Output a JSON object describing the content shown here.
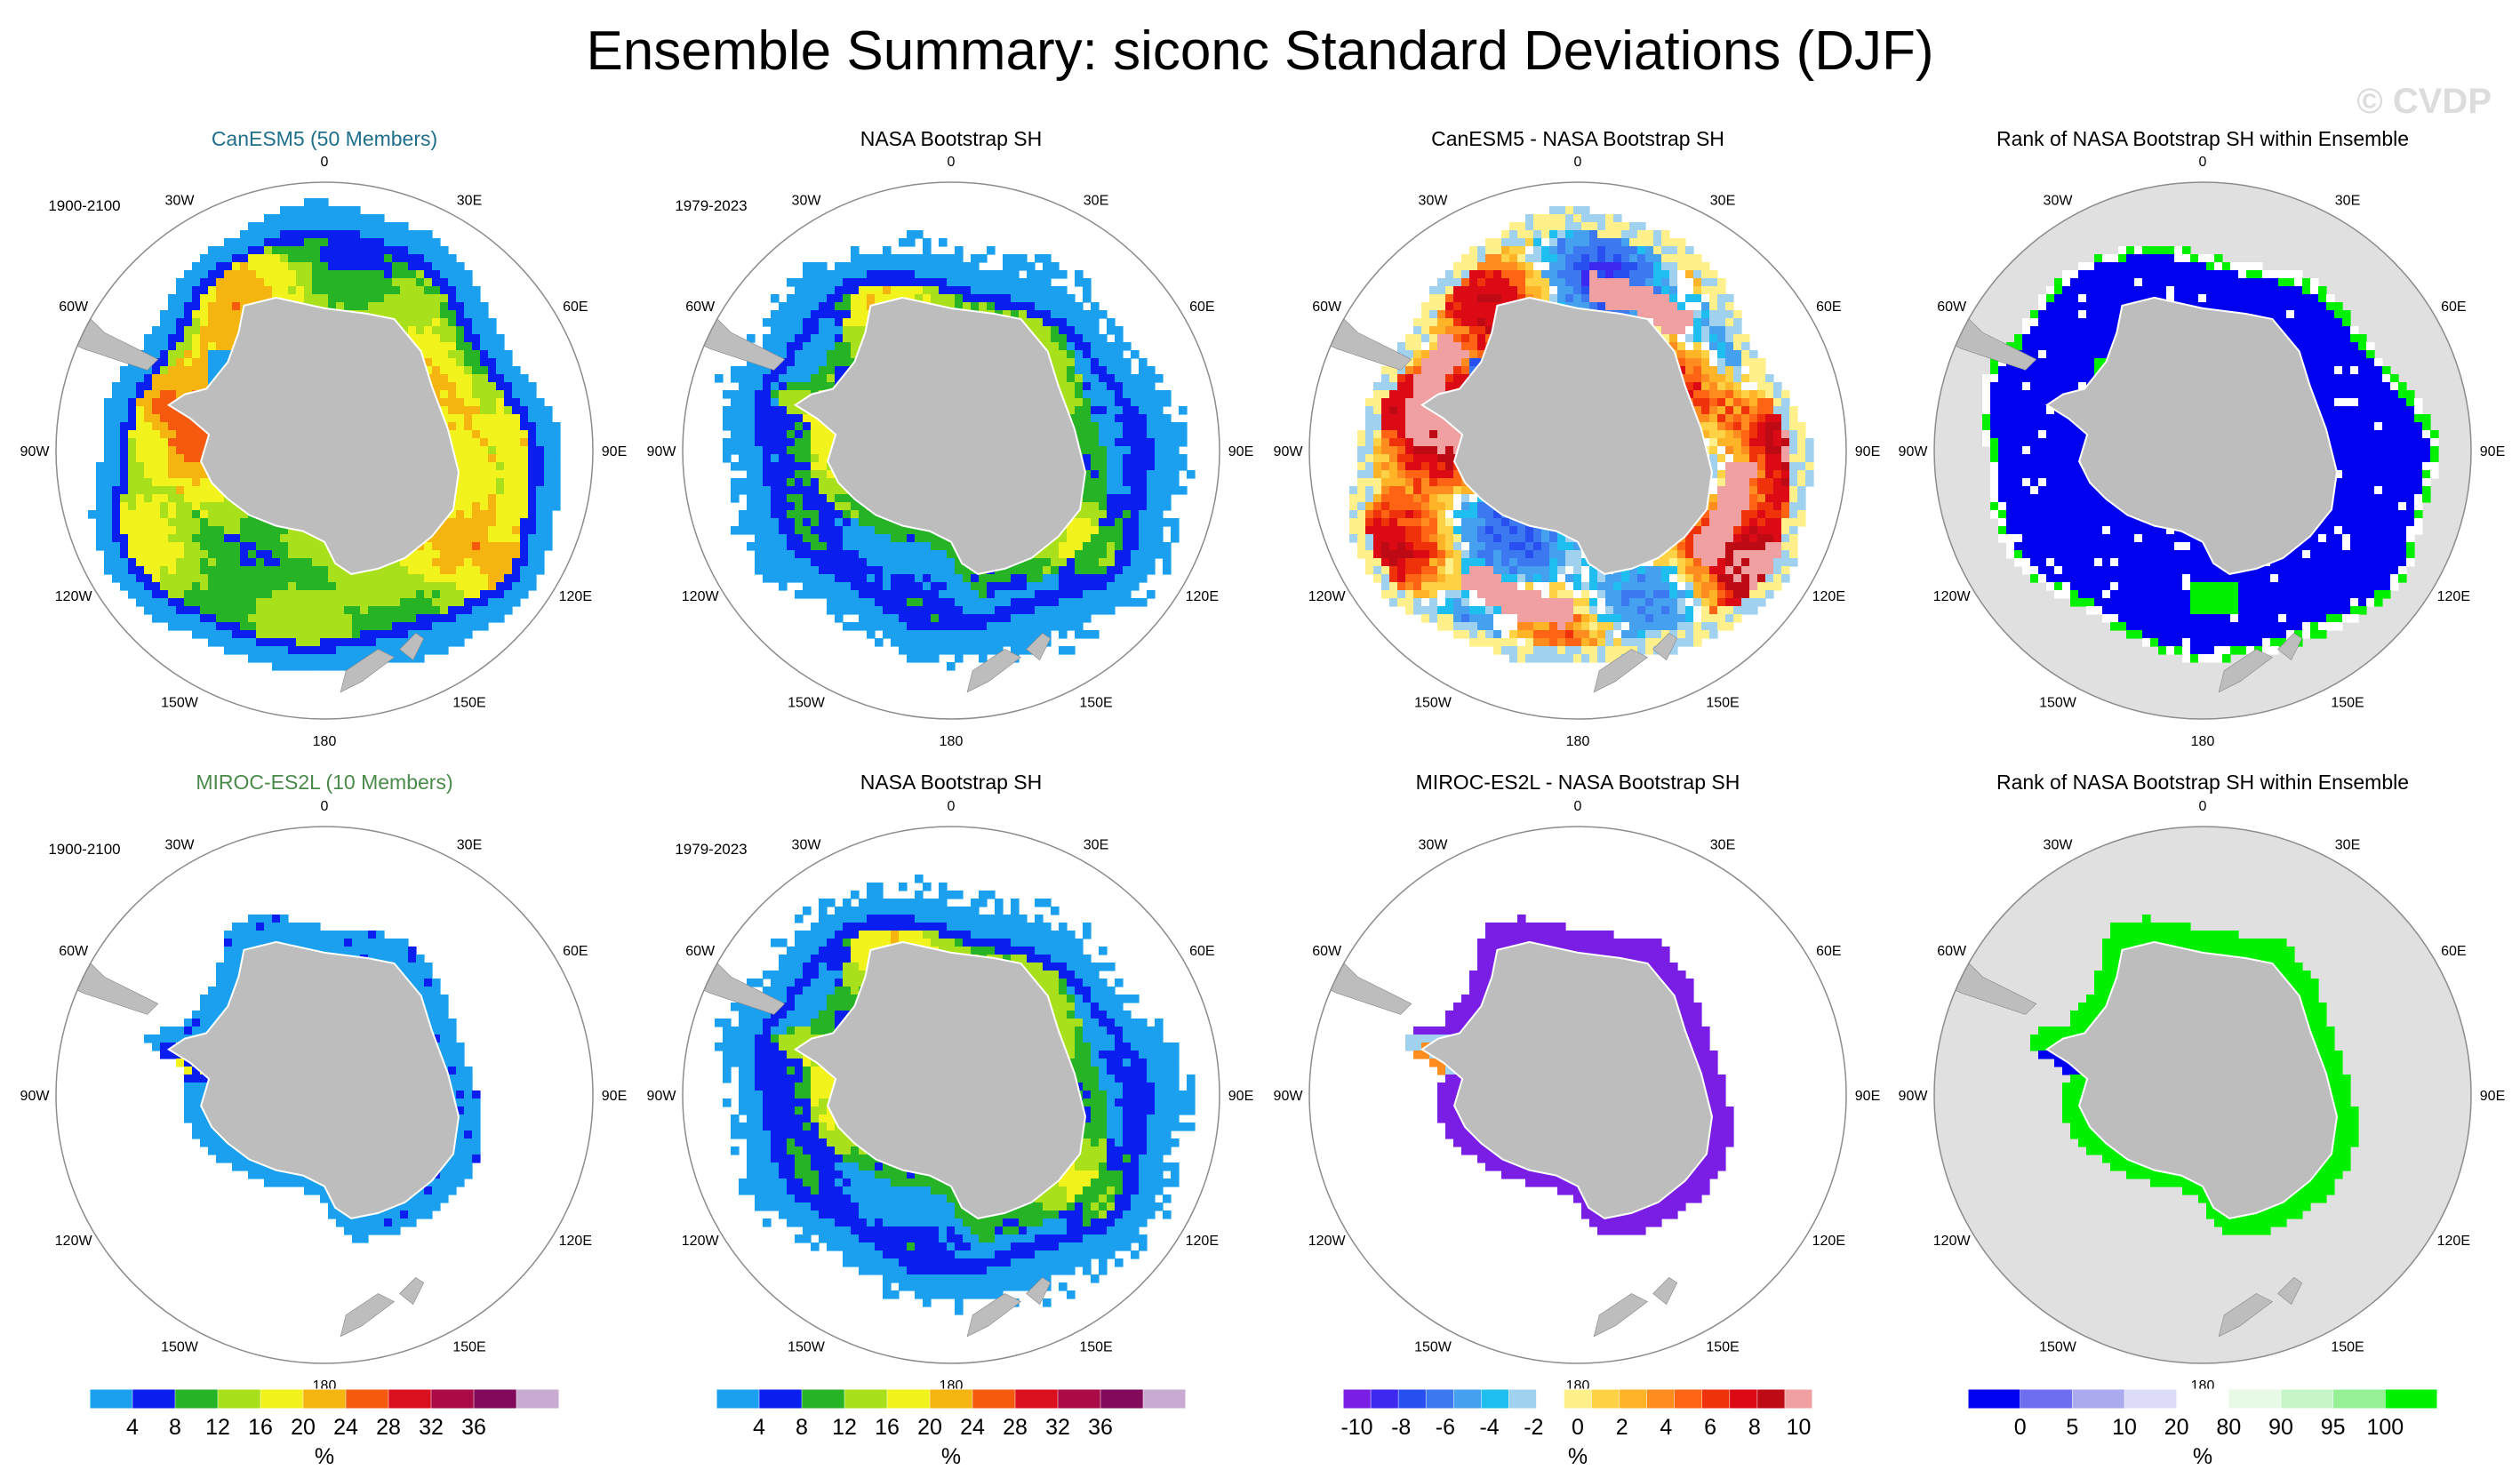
{
  "figure": {
    "title": "Ensemble Summary: siconc Standard Deviations (DJF)",
    "watermark": "© CVDP"
  },
  "colors": {
    "land": "#bdbdbd",
    "rank_background": "#e0e0e0",
    "canesm5_title": "#1f6f8b",
    "miroc_title": "#4a8a4a",
    "frame": "#8c8c8c"
  },
  "map_labels": {
    "lon": [
      "0",
      "30E",
      "60E",
      "90E",
      "120E",
      "150E",
      "180",
      "150W",
      "120W",
      "90W",
      "60W",
      "30W"
    ]
  },
  "chart_data": [
    {
      "type": "heatmap",
      "id": "r1c1",
      "title": "CanESM5 (50 Members)",
      "period": "1900-2100",
      "variable": "siconc std dev",
      "units": "%",
      "pattern": "std_model",
      "colorbar": "std"
    },
    {
      "type": "heatmap",
      "id": "r1c2",
      "title": "NASA Bootstrap SH",
      "period": "1979-2023",
      "variable": "siconc std dev",
      "units": "%",
      "pattern": "std_obs",
      "colorbar": "std"
    },
    {
      "type": "heatmap",
      "id": "r1c3",
      "title": "CanESM5 - NASA Bootstrap SH",
      "period": "",
      "variable": "siconc std dev difference",
      "units": "%",
      "pattern": "diff_pos",
      "colorbar": "diff"
    },
    {
      "type": "heatmap",
      "id": "r1c4",
      "title": "Rank of NASA Bootstrap SH within Ensemble",
      "period": "",
      "variable": "rank",
      "units": "%",
      "pattern": "rank_blue",
      "colorbar": "rank"
    },
    {
      "type": "heatmap",
      "id": "r2c1",
      "title": "MIROC-ES2L (10 Members)",
      "period": "1900-2100",
      "variable": "siconc std dev",
      "units": "%",
      "pattern": "std_small",
      "colorbar": "std"
    },
    {
      "type": "heatmap",
      "id": "r2c2",
      "title": "NASA Bootstrap SH",
      "period": "1979-2023",
      "variable": "siconc std dev",
      "units": "%",
      "pattern": "std_obs",
      "colorbar": "std"
    },
    {
      "type": "heatmap",
      "id": "r2c3",
      "title": "MIROC-ES2L - NASA Bootstrap SH",
      "period": "",
      "variable": "siconc std dev difference",
      "units": "%",
      "pattern": "diff_neg",
      "colorbar": "diff"
    },
    {
      "type": "heatmap",
      "id": "r2c4",
      "title": "Rank of NASA Bootstrap SH within Ensemble",
      "period": "",
      "variable": "rank",
      "units": "%",
      "pattern": "rank_green",
      "colorbar": "rank"
    }
  ],
  "colorbars": {
    "std": {
      "units": "%",
      "colors": [
        "#1ba0f0",
        "#0a1ef0",
        "#26b426",
        "#a8e01c",
        "#f2f21c",
        "#f5b40f",
        "#f55a0f",
        "#dc0f1e",
        "#aa0a46",
        "#820a5a",
        "#c8aad2"
      ],
      "ticks": [
        "4",
        "8",
        "12",
        "16",
        "20",
        "24",
        "28",
        "32",
        "36"
      ]
    },
    "diff": {
      "units": "%",
      "colors": [
        "#7a1ee6",
        "#3c28f0",
        "#2850f0",
        "#3c78f0",
        "#46a0f0",
        "#1ebef0",
        "#a0d2f0",
        "#ffffff",
        "#fff08c",
        "#ffd246",
        "#ffb428",
        "#ff8c1e",
        "#ff6414",
        "#f0320a",
        "#dc0a14",
        "#be0a14",
        "#f0a0a0"
      ],
      "ticks": [
        "-10",
        "-8",
        "-6",
        "-4",
        "-2",
        "0",
        "2",
        "4",
        "6",
        "8",
        "10"
      ]
    },
    "rank": {
      "units": "%",
      "colors": [
        "#0000f0",
        "#6e6ef0",
        "#aaaaf0",
        "#dcdcf8",
        "#ffffff",
        "#e6fae6",
        "#c8f5c8",
        "#96f096",
        "#00f000"
      ],
      "ticks": [
        "0",
        "5",
        "10",
        "20",
        "80",
        "90",
        "95",
        "100"
      ]
    }
  }
}
